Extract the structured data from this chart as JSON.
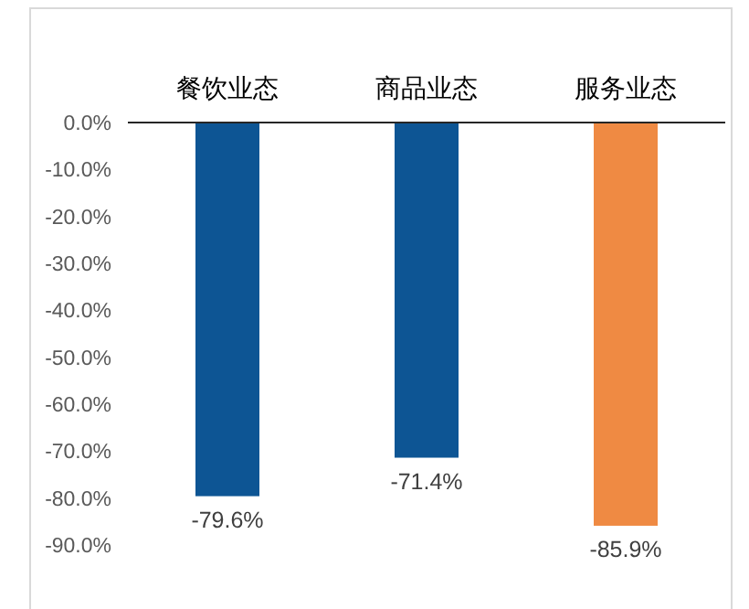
{
  "chart_data": {
    "type": "bar",
    "categories": [
      "餐饮业态",
      "商品业态",
      "服务业态"
    ],
    "values": [
      -79.6,
      -71.4,
      -85.9
    ],
    "colors": [
      "#0d5594",
      "#0d5594",
      "#ef8a43"
    ],
    "value_labels": [
      "-79.6%",
      "-71.4%",
      "-85.9%"
    ],
    "ylim": [
      -90,
      0
    ],
    "yticks": [
      {
        "value": 0,
        "label": "0.0%"
      },
      {
        "value": -10,
        "label": "-10.0%"
      },
      {
        "value": -20,
        "label": "-20.0%"
      },
      {
        "value": -30,
        "label": "-30.0%"
      },
      {
        "value": -40,
        "label": "-40.0%"
      },
      {
        "value": -50,
        "label": "-50.0%"
      },
      {
        "value": -60,
        "label": "-60.0%"
      },
      {
        "value": -70,
        "label": "-70.0%"
      },
      {
        "value": -80,
        "label": "-80.0%"
      },
      {
        "value": -90,
        "label": "-90.0%"
      }
    ],
    "grid": false
  }
}
